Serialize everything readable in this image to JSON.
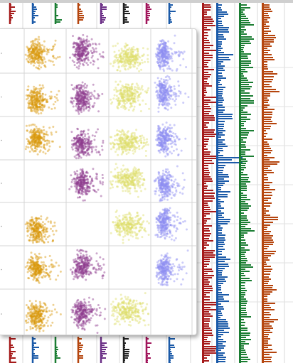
{
  "chart_data": [
    {
      "type": "histogram",
      "orientation": "horizontal",
      "columns": [
        {
          "color": "#a51a1a",
          "bars": [
            14,
            9,
            16,
            8,
            6,
            18,
            11,
            7,
            13,
            10,
            5,
            15,
            9,
            12,
            7,
            17,
            6,
            10,
            14,
            8,
            11,
            5,
            13,
            9,
            16,
            7,
            12,
            10,
            6,
            15,
            8,
            11,
            9,
            13,
            7,
            14,
            10,
            6,
            12,
            8,
            16,
            9
          ]
        },
        {
          "color": "#1b5aa8",
          "bars": [
            8,
            13,
            6,
            15,
            10,
            7,
            18,
            9,
            12,
            5,
            14,
            11,
            8,
            16,
            7,
            10,
            13,
            6,
            30,
            9,
            12,
            8,
            15,
            7,
            11,
            14,
            6,
            10,
            13,
            9,
            16,
            8,
            12,
            7,
            14,
            10,
            6,
            11,
            15,
            9,
            8,
            13
          ]
        },
        {
          "color": "#1a7d32",
          "bars": [
            12,
            7,
            15,
            9,
            17,
            6,
            11,
            14,
            8,
            13,
            10,
            16,
            7,
            12,
            9,
            15,
            6,
            11,
            14,
            8,
            16,
            10,
            7,
            13,
            9,
            12,
            15,
            6,
            11,
            8,
            14,
            10,
            13,
            7,
            9,
            16,
            12,
            8,
            15,
            11,
            6,
            10
          ]
        },
        {
          "color": "#b5450e",
          "bars": [
            10,
            14,
            8,
            12,
            16,
            9,
            13,
            7,
            15,
            11,
            18,
            8,
            12,
            10,
            14,
            6,
            13,
            9,
            17,
            11,
            8,
            15,
            10,
            12,
            7,
            16,
            9,
            13,
            11,
            14,
            8,
            12,
            10,
            15,
            7,
            13,
            9,
            16,
            11,
            8,
            14,
            10
          ]
        }
      ]
    },
    {
      "type": "scatter-matrix",
      "rows": 7,
      "columns": [
        {
          "color": "#d99a0e",
          "cells": [
            1,
            1,
            1,
            0,
            1,
            1,
            1
          ]
        },
        {
          "color": "#8d3b8e",
          "cells": [
            1,
            1,
            1,
            1,
            0,
            1,
            1
          ]
        },
        {
          "color": "#dedd6b",
          "cells": [
            1,
            1,
            1,
            1,
            1,
            0,
            1
          ]
        },
        {
          "color": "#8f8ef2",
          "cells": [
            1,
            1,
            1,
            1,
            1,
            1,
            0
          ]
        }
      ]
    }
  ]
}
